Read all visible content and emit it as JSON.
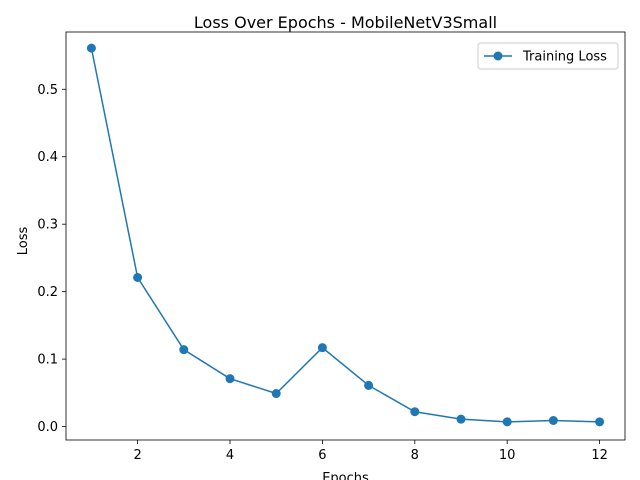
{
  "chart_data": {
    "type": "line",
    "title": "Loss Over Epochs - MobileNetV3Small",
    "xlabel": "Epochs",
    "ylabel": "Loss",
    "xlim": [
      0.45,
      12.55
    ],
    "ylim": [
      -0.0199,
      0.5849
    ],
    "xticks": [
      2,
      4,
      6,
      8,
      10,
      12
    ],
    "yticks": [
      0.0,
      0.1,
      0.2,
      0.3,
      0.4,
      0.5
    ],
    "ytick_labels": [
      "0.0",
      "0.1",
      "0.2",
      "0.3",
      "0.4",
      "0.5"
    ],
    "grid": false,
    "legend_position": "top-right",
    "series": [
      {
        "name": "Training Loss",
        "color": "#1f77b4",
        "marker": "circle",
        "x": [
          1,
          2,
          3,
          4,
          5,
          6,
          7,
          8,
          9,
          10,
          11,
          12
        ],
        "y": [
          0.561,
          0.221,
          0.114,
          0.071,
          0.049,
          0.117,
          0.061,
          0.022,
          0.011,
          0.007,
          0.009,
          0.007
        ]
      }
    ]
  }
}
